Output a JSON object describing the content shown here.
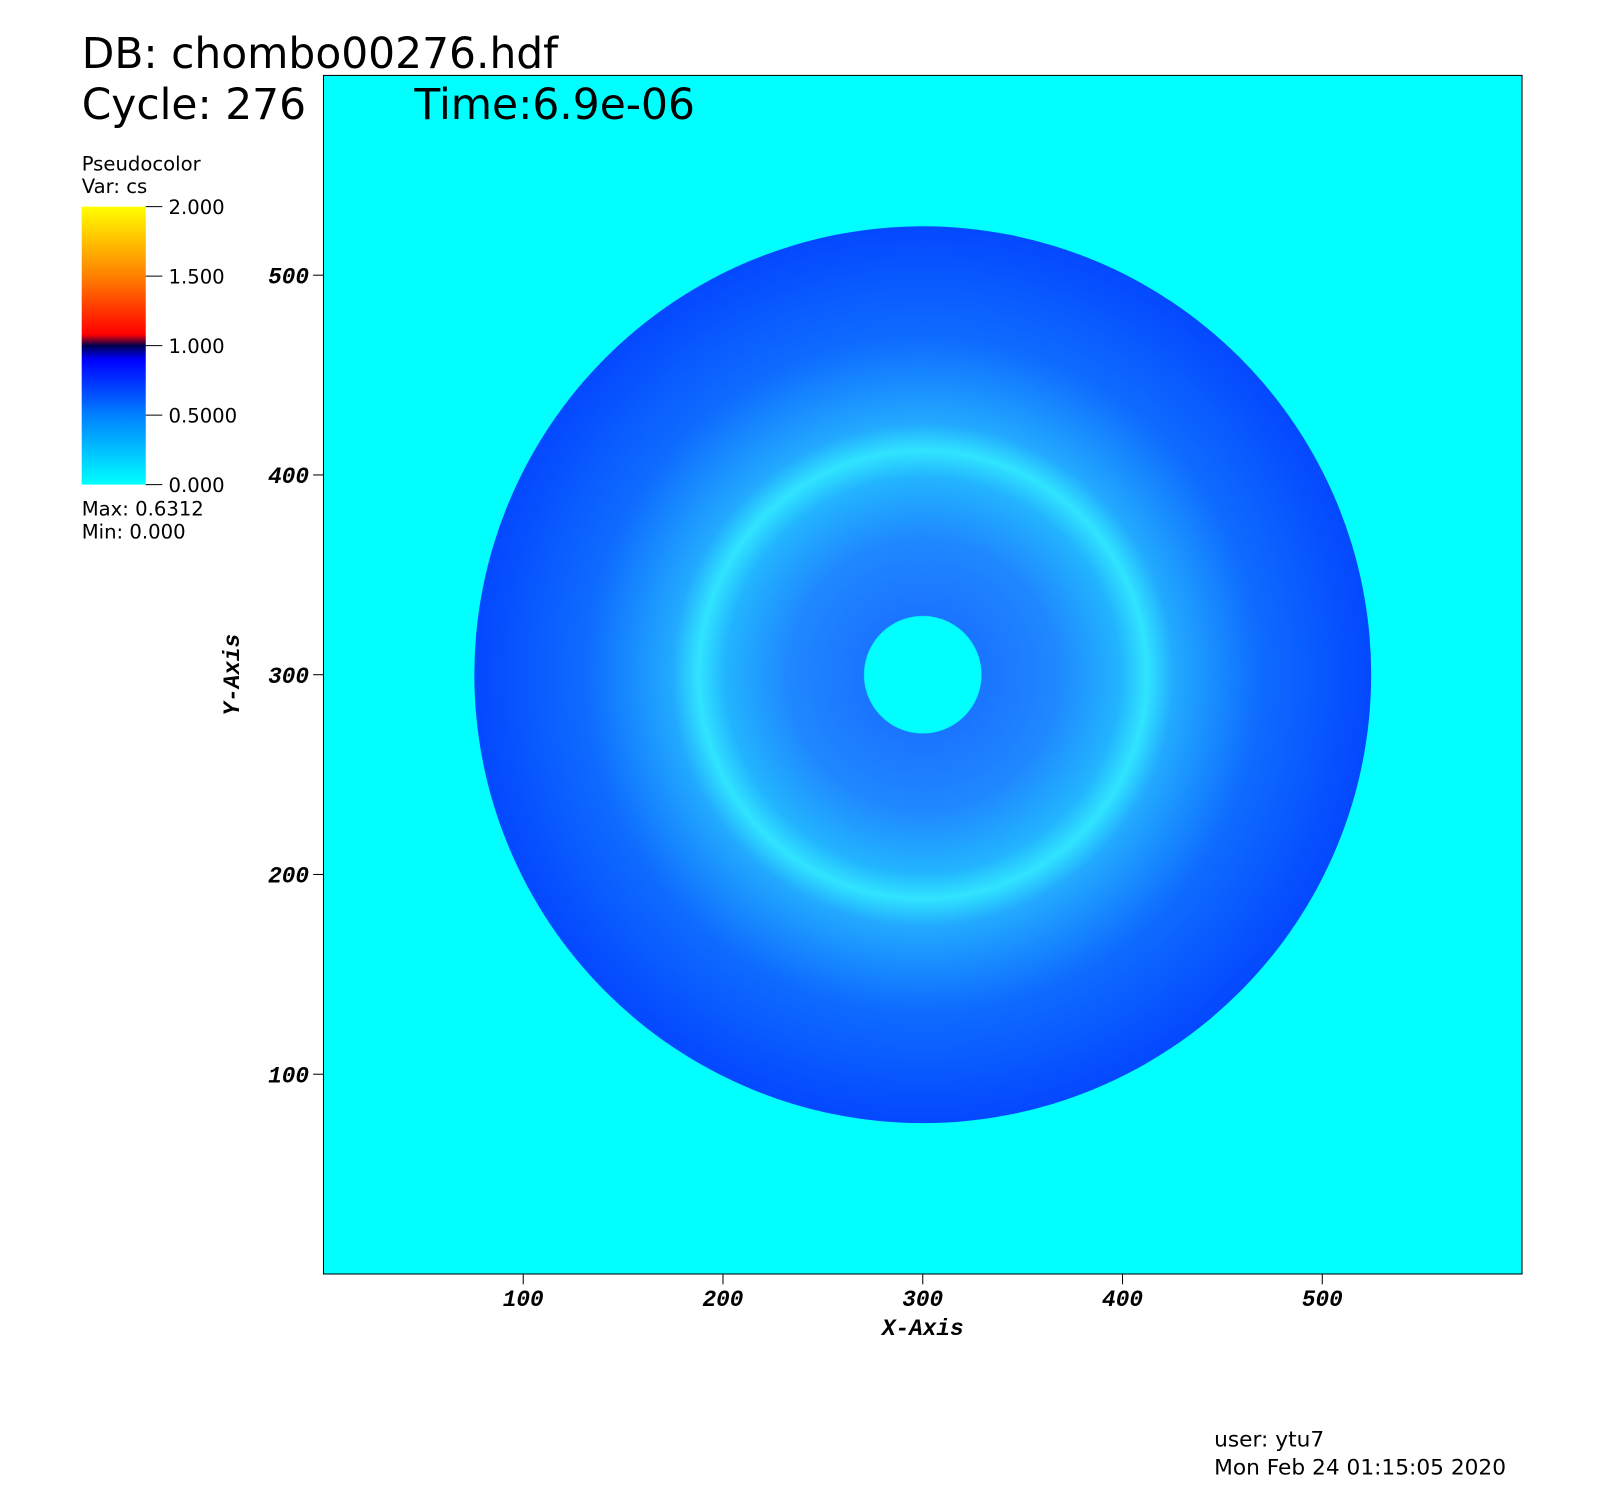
{
  "chart_data": {
    "type": "pseudocolor",
    "db_label": "DB: chombo00276.hdf",
    "cycle_label": "Cycle: 276",
    "time_label": "Time:6.9e-06",
    "xlabel": "X-Axis",
    "ylabel": "Y-Axis",
    "xlim": [
      0,
      600
    ],
    "ylim": [
      0,
      600
    ],
    "xticks": [
      100,
      200,
      300,
      400,
      500
    ],
    "yticks": [
      100,
      200,
      300,
      400,
      500
    ],
    "colorbar": {
      "title": "Pseudocolor",
      "var": "Var: cs",
      "lim": [
        0,
        2
      ],
      "ticks": [
        {
          "value": 0,
          "label": "0.000"
        },
        {
          "value": 0.5,
          "label": "0.5000"
        },
        {
          "value": 1,
          "label": "1.000"
        },
        {
          "value": 1.5,
          "label": "1.500"
        },
        {
          "value": 2,
          "label": "2.000"
        }
      ],
      "max_label": "Max:  0.6312",
      "min_label": "Min:  0.000"
    },
    "user_label": "user: ytu7",
    "date_label": "Mon Feb 24 01:15:05 2020"
  }
}
